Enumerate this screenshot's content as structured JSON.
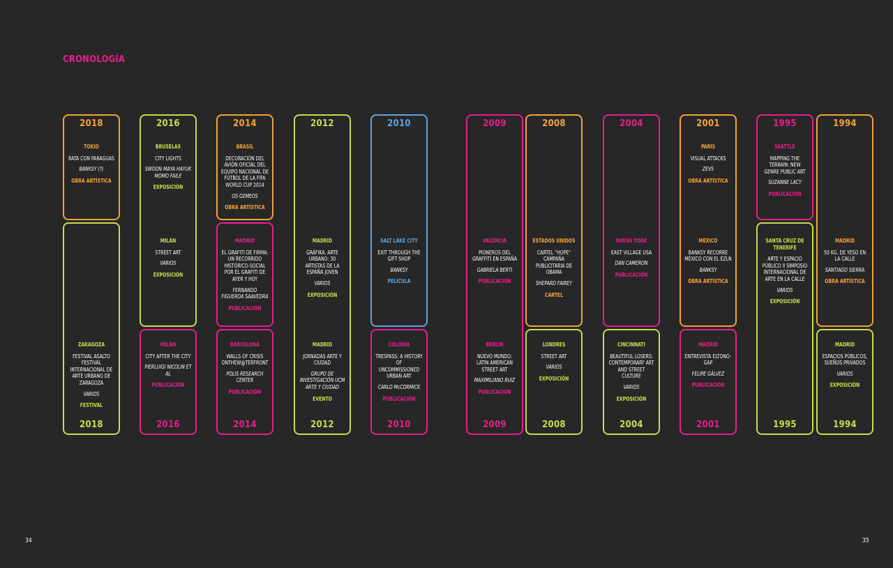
{
  "colors": {
    "orange": "#f7a23a",
    "lime": "#c3e04f",
    "magenta": "#e91e8c",
    "blue": "#5aa6e6"
  },
  "page": {
    "title": "CRONOLOGÍA",
    "left_number": "34",
    "right_number": "35"
  },
  "columns": [
    {
      "year": "2018",
      "color_top": "orange",
      "color_bottom": "lime",
      "top": {
        "city": "TOKIO",
        "title": "RATA CON PARAGUAS",
        "author": "BANKSY (?)",
        "type": "OBRA ARTÍSTICA"
      },
      "bottom": {
        "city": "ZARAGOZA",
        "title": "FESTIVAL ASALTO FESTIVAL INTERNACIONAL DE ARTE URBANO DE ZARAGOZA",
        "author": "VARIOS",
        "type": "FESTIVAL"
      }
    },
    {
      "year": "2016",
      "color_top": "lime",
      "color_bottom": "magenta",
      "top": {
        "city": "BRUSELAS",
        "title": "CITY LIGHTS",
        "author": "SWOON MAYA HAYUK MOMO FAILE",
        "type": "EXPOSICIÓN"
      },
      "middle": {
        "city": "MILÁN",
        "title": "STREET ART",
        "author": "VARIOS",
        "type": "EXPOSICIÓN"
      },
      "bottom": {
        "city": "MILÁN",
        "title": "CITY AFTER THE CITY",
        "author": "PIERLUIGI NICOLIN ET AL",
        "type": "PUBLICACIÓN"
      }
    },
    {
      "year": "2014",
      "color_top": "orange",
      "color_bottom": "magenta",
      "top": {
        "city": "BRASIL",
        "title": "DECORACIÓN DEL AVIÓN OFICIAL DEL EQUIPO NACIONAL DE FÚTBOL DE LA FIFA WORLD CUP 2014",
        "author": "OS GEMEOS",
        "type": "OBRA ARTÍSTICA"
      },
      "middle": {
        "city": "MADRID",
        "title": "EL GRAFITI DE FIRMA: UN RECORRIDO HISTÓRICO-SOCIAL POR EL GRAFITI DE AYER Y HOY",
        "author": "FERNANDO FIGUEROA SAAVEDRA",
        "type": "PUBLICACIÓN"
      },
      "bottom": {
        "city": "BARCELONA",
        "title": "WALLS OF CRISIS ONTHEW@TERFRONT",
        "author": "POLIS RESEARCH CENTER",
        "type": "PUBLICACIÓN"
      }
    },
    {
      "year": "2012",
      "color_top": "lime",
      "color_bottom": "lime",
      "middle": {
        "city": "MADRID",
        "title": "GRÁFIKA. ARTE URBANO: 30 ARTISTAS DE LA ESPAÑA JOVEN",
        "author": "VARIOS",
        "type": "EXPOSICIÓN"
      },
      "bottom": {
        "city": "MADRID",
        "title": "JORNADAS ARTE Y CIUDAD",
        "author": "GRUPO DE INVESTIGACIÓN UCM ARTE Y CIUDAD",
        "type": "EVENTO"
      }
    },
    {
      "year": "2010",
      "color_top": "blue",
      "color_bottom": "magenta",
      "middle": {
        "city": "SALT LAKE CITY",
        "title": "EXIT THROUGH THE GIFT SHOP",
        "author": "BANKSY",
        "type": "PELÍCULA"
      },
      "bottom": {
        "city": "COLONIA",
        "title": "TRESPASS: A HISTORY OF UNCOMMISSIONED URBAN ART",
        "author": "CARLO McCORMICK",
        "type": "PUBLICACIÓN"
      }
    },
    {
      "year": "2009",
      "color_top": "magenta",
      "color_bottom": "magenta",
      "middle": {
        "city": "VALENCIA",
        "title": "PIONEROS DEL GRAFFITI EN ESPAÑA",
        "author": "GABRIELA BERTI",
        "type": "PUBLICACIÓN"
      },
      "bottom": {
        "city": "BERLÍN",
        "title": "NUEVO MUNDO: LATIN AMERICAN STREET ART",
        "author": "MAXIMILIANO RUIZ",
        "type": "PUBLICACIÓN"
      }
    },
    {
      "year": "2008",
      "color_top": "orange",
      "color_bottom": "lime",
      "middle": {
        "city": "ESTADOS UNIDOS",
        "title": "CARTEL \"HOPE\" CAMPAÑA PUBLICITARIA DE OBAMA",
        "author": "SHEPARD FAIREY",
        "type": "CARTEL"
      },
      "bottom": {
        "city": "LONDRES",
        "title": "STREET ART",
        "author": "VARIOS",
        "type": "EXPOSICIÓN"
      }
    },
    {
      "year": "2004",
      "color_top": "magenta",
      "color_bottom": "lime",
      "middle": {
        "city": "NUEVA YORK",
        "title": "EAST VILLAGE USA",
        "author": "DAN CAMERON",
        "type": "PUBLICACIÓN"
      },
      "bottom": {
        "city": "CINCINNATI",
        "title": "BEAUTIFUL LOSERS: CONTEMPORARY ART AND STREET CULTURE",
        "author": "VARIOS",
        "type": "EXPOSICIÓN"
      }
    },
    {
      "year": "2001",
      "color_top": "orange",
      "color_bottom": "magenta",
      "top": {
        "city": "PARÍS",
        "title": "VISUAL ATTACKS",
        "author": "ZEVS",
        "type": "OBRA ARTÍSTICA"
      },
      "middle": {
        "city": "MÉXICO",
        "title": "BANKSY RECORRE MÉXICO CON EL EZLN",
        "author": "BANKSY",
        "type": "OBRA ARTÍSTICA"
      },
      "bottom": {
        "city": "MADRID",
        "title": "ENTREVISTA ELTONO-GAP",
        "author": "FELIPE GÁLVEZ",
        "type": "PUBLICACIÓN"
      }
    },
    {
      "year": "1995",
      "color_top": "magenta",
      "color_bottom": "lime",
      "top": {
        "city": "SEATTLE",
        "title": "MAPPING THE TERRAIN: NEW GENRE PUBLIC ART",
        "author": "SUZANNE LACY",
        "type": "PUBLICACIÓN"
      },
      "middle": {
        "city": "SANTA CRUZ DE TENERIFE",
        "title": "ARTE Y ESPACIO PÚBLICO II SIMPOSIO INTERNACIONAL DE ARTE EN LA CALLE",
        "author": "VARIOS",
        "type": "EXPOSICIÓN"
      }
    },
    {
      "year": "1994",
      "color_top": "orange",
      "color_bottom": "lime",
      "middle": {
        "city": "MADRID",
        "title": "50 KG. DE YESO EN LA CALLE",
        "author": "SANTIAGO SIERRA",
        "type": "OBRA ARTÍSTICA"
      },
      "bottom": {
        "city": "MADRID",
        "title": "ESPACIOS PÚBLICOS, SUEÑOS PRIVADOS",
        "author": "VARIOS",
        "type": "EXPOSICIÓN"
      }
    }
  ]
}
